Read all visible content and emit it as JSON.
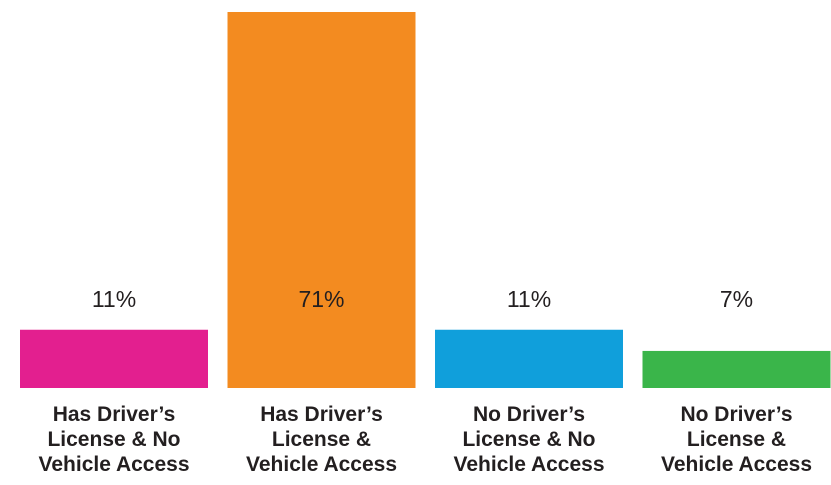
{
  "chart_data": {
    "type": "bar",
    "categories": [
      "Has Driver’s License & No Vehicle Access",
      "Has Driver’s License & Vehicle Access",
      "No Driver’s License & No Vehicle Access",
      "No Driver’s License & Vehicle Access"
    ],
    "values": [
      11,
      71,
      11,
      7
    ],
    "value_labels": [
      "11%",
      "71%",
      "11%",
      "7%"
    ],
    "colors": [
      "#e31f8f",
      "#f38b20",
      "#109fdb",
      "#3ab54a"
    ]
  }
}
